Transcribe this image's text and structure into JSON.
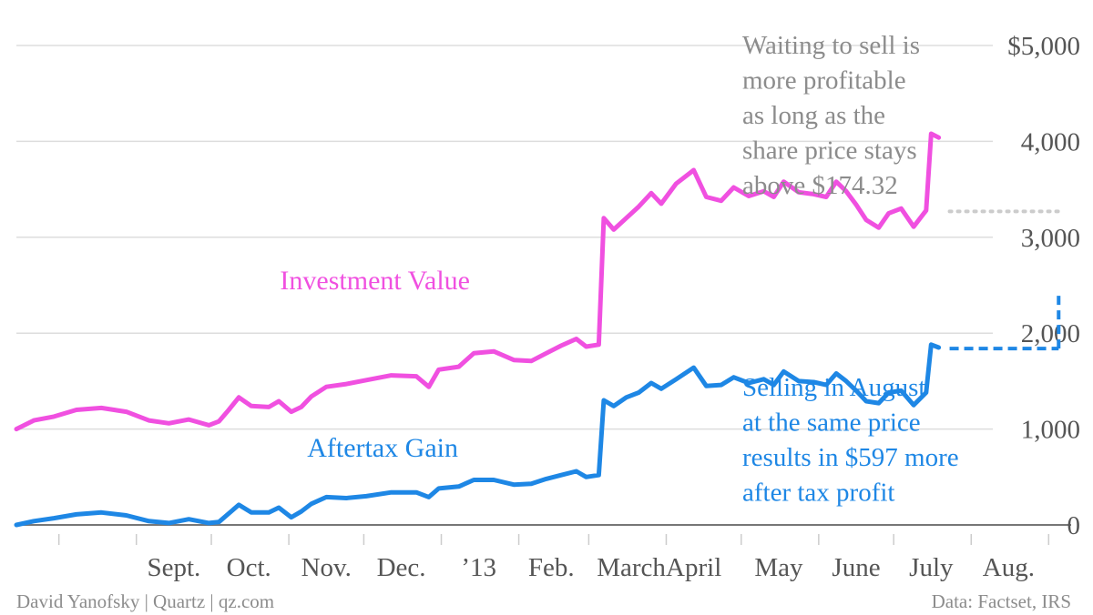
{
  "chart_data": {
    "type": "line",
    "y_axis": {
      "ticks": [
        0,
        1000,
        2000,
        3000,
        4000,
        5000
      ],
      "tick_labels": [
        "0",
        "1,000",
        "2,000",
        "3,000",
        "4,000",
        "$5,000"
      ],
      "ylim": [
        0,
        5000
      ],
      "grid": true,
      "position": "right"
    },
    "x_axis": {
      "months": [
        "Sept.",
        "Oct.",
        "Nov.",
        "Dec.",
        "’13",
        "Feb.",
        "March",
        "April",
        "May",
        "June",
        "July",
        "Aug."
      ],
      "xlim": [
        "2012-07-15",
        "2013-09-10"
      ]
    },
    "series": [
      {
        "name": "Investment Value",
        "color": "#f050e0",
        "points": [
          [
            "2012-07-15",
            1000
          ],
          [
            "2012-07-22",
            1090
          ],
          [
            "2012-07-30",
            1130
          ],
          [
            "2012-08-08",
            1200
          ],
          [
            "2012-08-18",
            1220
          ],
          [
            "2012-08-28",
            1180
          ],
          [
            "2012-09-06",
            1090
          ],
          [
            "2012-09-14",
            1060
          ],
          [
            "2012-09-22",
            1100
          ],
          [
            "2012-09-30",
            1040
          ],
          [
            "2012-10-04",
            1080
          ],
          [
            "2012-10-08",
            1200
          ],
          [
            "2012-10-12",
            1330
          ],
          [
            "2012-10-17",
            1240
          ],
          [
            "2012-10-24",
            1230
          ],
          [
            "2012-10-28",
            1290
          ],
          [
            "2012-11-02",
            1180
          ],
          [
            "2012-11-06",
            1230
          ],
          [
            "2012-11-10",
            1340
          ],
          [
            "2012-11-16",
            1440
          ],
          [
            "2012-11-24",
            1470
          ],
          [
            "2012-12-02",
            1510
          ],
          [
            "2012-12-12",
            1560
          ],
          [
            "2012-12-22",
            1550
          ],
          [
            "2012-12-27",
            1440
          ],
          [
            "2012-12-31",
            1620
          ],
          [
            "2013-01-08",
            1650
          ],
          [
            "2013-01-14",
            1790
          ],
          [
            "2013-01-22",
            1810
          ],
          [
            "2013-01-30",
            1720
          ],
          [
            "2013-02-06",
            1710
          ],
          [
            "2013-02-12",
            1790
          ],
          [
            "2013-02-18",
            1870
          ],
          [
            "2013-02-24",
            1940
          ],
          [
            "2013-02-28",
            1860
          ],
          [
            "2013-03-05",
            1880
          ],
          [
            "2013-03-07",
            3200
          ],
          [
            "2013-03-11",
            3080
          ],
          [
            "2013-03-16",
            3200
          ],
          [
            "2013-03-21",
            3320
          ],
          [
            "2013-03-26",
            3460
          ],
          [
            "2013-03-30",
            3350
          ],
          [
            "2013-04-05",
            3560
          ],
          [
            "2013-04-12",
            3700
          ],
          [
            "2013-04-17",
            3420
          ],
          [
            "2013-04-23",
            3380
          ],
          [
            "2013-04-28",
            3520
          ],
          [
            "2013-05-04",
            3430
          ],
          [
            "2013-05-10",
            3480
          ],
          [
            "2013-05-14",
            3420
          ],
          [
            "2013-05-18",
            3580
          ],
          [
            "2013-05-24",
            3470
          ],
          [
            "2013-05-30",
            3450
          ],
          [
            "2013-06-04",
            3420
          ],
          [
            "2013-06-08",
            3580
          ],
          [
            "2013-06-12",
            3480
          ],
          [
            "2013-06-16",
            3340
          ],
          [
            "2013-06-20",
            3180
          ],
          [
            "2013-06-25",
            3100
          ],
          [
            "2013-06-29",
            3250
          ],
          [
            "2013-07-04",
            3300
          ],
          [
            "2013-07-09",
            3110
          ],
          [
            "2013-07-14",
            3280
          ],
          [
            "2013-07-16",
            4080
          ],
          [
            "2013-07-19",
            4040
          ]
        ]
      },
      {
        "name": "Aftertax Gain",
        "color": "#1e87e5",
        "points": [
          [
            "2012-07-15",
            0
          ],
          [
            "2012-07-22",
            40
          ],
          [
            "2012-07-30",
            70
          ],
          [
            "2012-08-08",
            110
          ],
          [
            "2012-08-18",
            130
          ],
          [
            "2012-08-28",
            100
          ],
          [
            "2012-09-06",
            40
          ],
          [
            "2012-09-14",
            20
          ],
          [
            "2012-09-22",
            60
          ],
          [
            "2012-09-30",
            20
          ],
          [
            "2012-10-04",
            30
          ],
          [
            "2012-10-08",
            120
          ],
          [
            "2012-10-12",
            210
          ],
          [
            "2012-10-17",
            130
          ],
          [
            "2012-10-24",
            130
          ],
          [
            "2012-10-28",
            180
          ],
          [
            "2012-11-02",
            80
          ],
          [
            "2012-11-06",
            140
          ],
          [
            "2012-11-10",
            220
          ],
          [
            "2012-11-16",
            290
          ],
          [
            "2012-11-24",
            280
          ],
          [
            "2012-12-02",
            300
          ],
          [
            "2012-12-12",
            340
          ],
          [
            "2012-12-22",
            340
          ],
          [
            "2012-12-27",
            290
          ],
          [
            "2012-12-31",
            380
          ],
          [
            "2013-01-08",
            400
          ],
          [
            "2013-01-14",
            470
          ],
          [
            "2013-01-22",
            470
          ],
          [
            "2013-01-30",
            420
          ],
          [
            "2013-02-06",
            430
          ],
          [
            "2013-02-12",
            480
          ],
          [
            "2013-02-18",
            520
          ],
          [
            "2013-02-24",
            560
          ],
          [
            "2013-02-28",
            500
          ],
          [
            "2013-03-05",
            520
          ],
          [
            "2013-03-07",
            1300
          ],
          [
            "2013-03-11",
            1240
          ],
          [
            "2013-03-16",
            1330
          ],
          [
            "2013-03-21",
            1380
          ],
          [
            "2013-03-26",
            1480
          ],
          [
            "2013-03-30",
            1420
          ],
          [
            "2013-04-05",
            1520
          ],
          [
            "2013-04-12",
            1640
          ],
          [
            "2013-04-17",
            1450
          ],
          [
            "2013-04-23",
            1460
          ],
          [
            "2013-04-28",
            1540
          ],
          [
            "2013-05-04",
            1480
          ],
          [
            "2013-05-10",
            1520
          ],
          [
            "2013-05-14",
            1460
          ],
          [
            "2013-05-18",
            1600
          ],
          [
            "2013-05-24",
            1500
          ],
          [
            "2013-05-30",
            1490
          ],
          [
            "2013-06-04",
            1460
          ],
          [
            "2013-06-08",
            1580
          ],
          [
            "2013-06-12",
            1500
          ],
          [
            "2013-06-16",
            1400
          ],
          [
            "2013-06-20",
            1290
          ],
          [
            "2013-06-25",
            1270
          ],
          [
            "2013-06-29",
            1380
          ],
          [
            "2013-07-04",
            1400
          ],
          [
            "2013-07-09",
            1250
          ],
          [
            "2013-07-14",
            1380
          ],
          [
            "2013-07-16",
            1880
          ],
          [
            "2013-07-19",
            1850
          ]
        ]
      }
    ],
    "projections": [
      {
        "style": "dotted",
        "color": "#cccccc",
        "from": "2013-07-19",
        "to": "2013-09-05",
        "value": 3270
      },
      {
        "style": "dashed",
        "color": "#1e87e5",
        "from": "2013-07-19",
        "to": "2013-09-05",
        "value": 1840,
        "end_value": 2440
      }
    ],
    "annotations": {
      "top_note": [
        "Waiting to sell is",
        "more profitable",
        "as long as the",
        "share price stays",
        "above $174.32"
      ],
      "bottom_note": [
        "Selling in August",
        "at the same price",
        "results in $597 more",
        "after tax profit"
      ]
    }
  },
  "footer": {
    "credit": "David Yanofsky | Quartz | qz.com",
    "source": "Data: Factset, IRS"
  }
}
